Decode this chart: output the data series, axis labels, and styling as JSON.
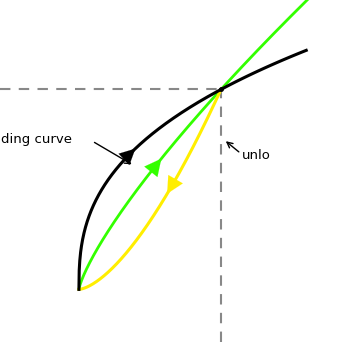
{
  "background_color": "#ffffff",
  "loading_curve_color": "#000000",
  "green_line_color": "#33ff00",
  "yellow_curve_color": "#ffee00",
  "dashed_line_color": "#888888",
  "label_loading": "ding curve",
  "label_unloading": "unlo",
  "figsize": [
    3.42,
    3.42
  ],
  "dpi": 100,
  "xlim": [
    -1.5,
    5.0
  ],
  "ylim": [
    -1.0,
    5.5
  ],
  "x_peak": 2.7,
  "y_peak": 3.8,
  "x_origin": 0.0,
  "y_origin": 0.0
}
